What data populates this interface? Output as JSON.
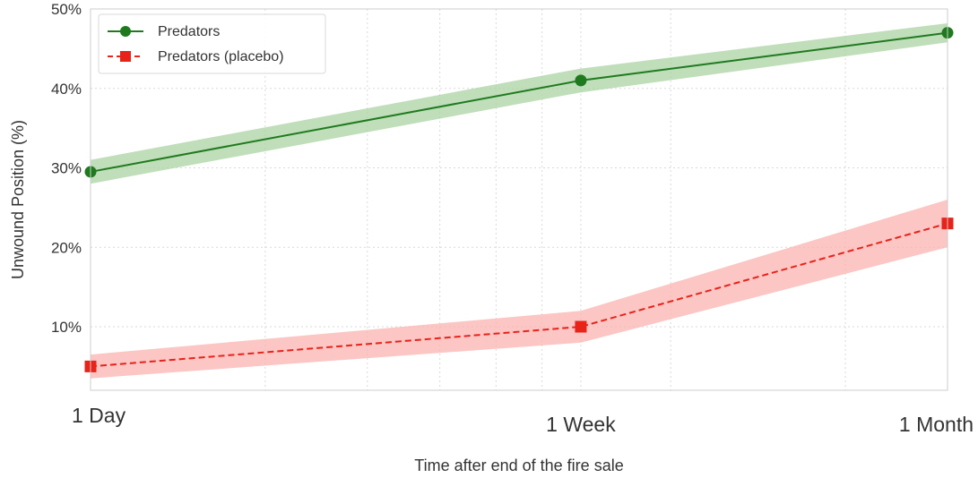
{
  "chart_data": {
    "type": "line",
    "title": "",
    "xlabel": "Time after end of the fire sale",
    "ylabel": "Unwound Position (%)",
    "x_scale": "log",
    "x_unit": "days",
    "categories": [
      "1 Day",
      "1 Week",
      "1 Month"
    ],
    "x": [
      1,
      7,
      30
    ],
    "ylim": [
      2,
      50
    ],
    "yticks": [
      10,
      20,
      30,
      40,
      50
    ],
    "ytick_labels": [
      "10%",
      "20%",
      "30%",
      "40%",
      "50%"
    ],
    "grid": true,
    "legend_position": "top-left",
    "series": [
      {
        "name": "Predators",
        "values": [
          29.5,
          41,
          47
        ],
        "ci_lower": [
          28,
          39.5,
          45.8
        ],
        "ci_upper": [
          31,
          42.5,
          48.2
        ],
        "color": "#1f7a1f",
        "band_color": "#a9d3a2",
        "marker": "circle",
        "line_style": "solid"
      },
      {
        "name": "Predators (placebo)",
        "values": [
          5,
          10,
          23
        ],
        "ci_lower": [
          3.5,
          8,
          20
        ],
        "ci_upper": [
          6.5,
          12,
          26
        ],
        "color": "#e8231a",
        "band_color": "#f9b3b0",
        "marker": "square",
        "line_style": "dashed"
      }
    ]
  }
}
